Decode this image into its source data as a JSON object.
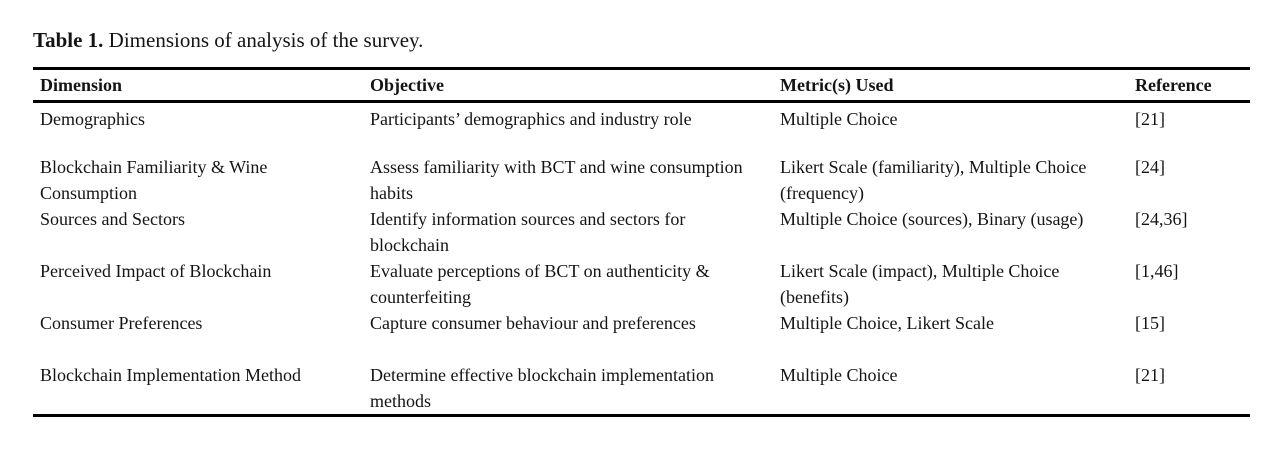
{
  "title": {
    "label": "Table 1.",
    "caption": " Dimensions of analysis of the survey."
  },
  "table": {
    "headers": [
      "Dimension",
      "Objective",
      "Metric(s) Used",
      "Reference"
    ],
    "rows": [
      {
        "dimension": "Demographics",
        "objective": "Participants’ demographics and industry role",
        "metrics": "Multiple Choice",
        "reference": "[21]"
      },
      {
        "dimension": "Blockchain Familiarity & Wine Consumption",
        "objective": "Assess familiarity with BCT and wine consumption habits",
        "metrics": "Likert Scale (familiarity), Multiple Choice (frequency)",
        "reference": "[24]"
      },
      {
        "dimension": "Sources and Sectors",
        "objective": "Identify information sources and sectors for blockchain",
        "metrics": "Multiple Choice (sources), Binary (usage)",
        "reference": "[24,36]"
      },
      {
        "dimension": "Perceived Impact of Blockchain",
        "objective": "Evaluate perceptions of BCT on authenticity & counterfeiting",
        "metrics": "Likert Scale (impact), Multiple Choice (benefits)",
        "reference": "[1,46]"
      },
      {
        "dimension": "Consumer Preferences",
        "objective": "Capture consumer behaviour and preferences",
        "metrics": "Multiple Choice, Likert Scale",
        "reference": "[15]"
      },
      {
        "dimension": "Blockchain Implementation Method",
        "objective": "Determine effective blockchain implementation methods",
        "metrics": "Multiple Choice",
        "reference": "[21]"
      }
    ]
  }
}
